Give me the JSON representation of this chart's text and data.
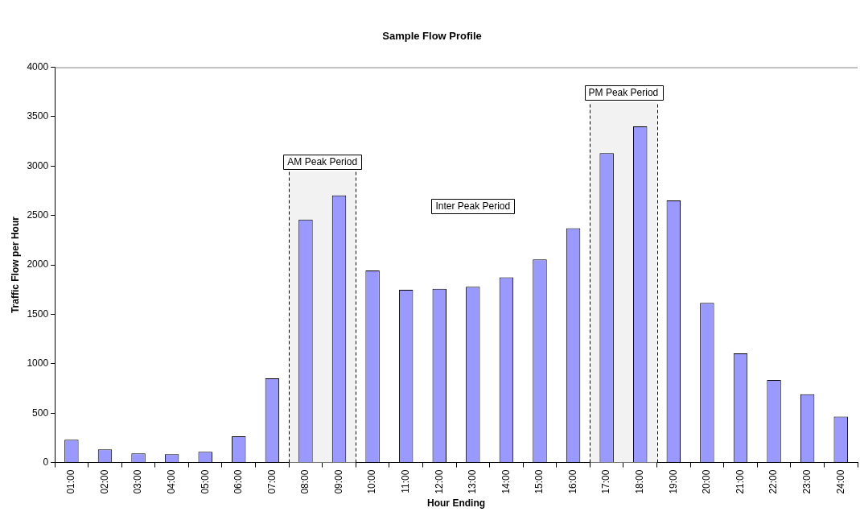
{
  "chart_data": {
    "type": "bar",
    "title": "Sample Flow Profile",
    "xlabel": "Hour Ending",
    "ylabel": "Traffic Flow per Hour",
    "categories": [
      "01:00",
      "02:00",
      "03:00",
      "04:00",
      "05:00",
      "06:00",
      "07:00",
      "08:00",
      "09:00",
      "10:00",
      "11:00",
      "12:00",
      "13:00",
      "14:00",
      "15:00",
      "16:00",
      "17:00",
      "18:00",
      "19:00",
      "20:00",
      "21:00",
      "22:00",
      "23:00",
      "24:00"
    ],
    "values": [
      231,
      133,
      92,
      84,
      109,
      266,
      851,
      2458,
      2703,
      1944,
      1748,
      1759,
      1778,
      1874,
      2055,
      2371,
      3132,
      3401,
      2653,
      1615,
      1104,
      835,
      691,
      465
    ],
    "color": "#9999ff",
    "ylim": [
      0,
      4000
    ],
    "yticks": [
      0,
      500,
      1000,
      1500,
      2000,
      2500,
      3000,
      3500,
      4000
    ],
    "bands": [
      {
        "axis": "x",
        "from": "08:00",
        "to": "09:00",
        "label": "AM Peak Period",
        "color": "#f2f2f2"
      },
      {
        "axis": "x",
        "from": "17:00",
        "to": "18:00",
        "label": "PM Peak Period",
        "color": "#f2f2f2"
      }
    ],
    "annotations": [
      "Inter Peak Period"
    ],
    "grid": false,
    "legend": false
  }
}
